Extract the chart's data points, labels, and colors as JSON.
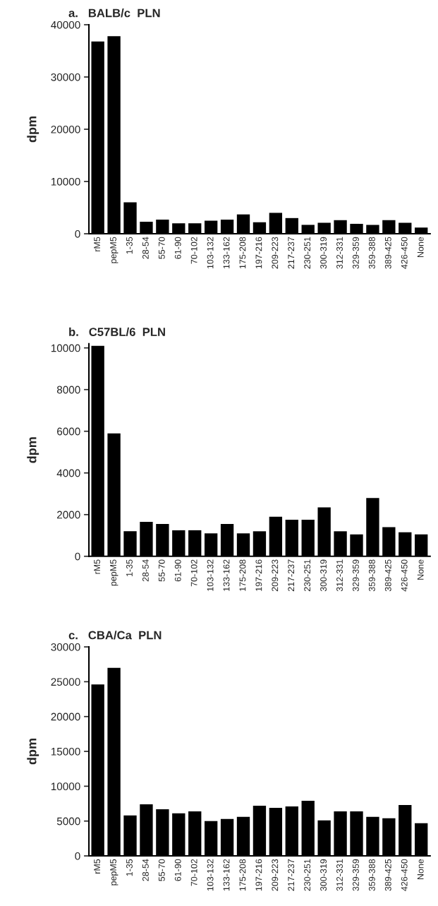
{
  "chart_data": [
    {
      "type": "bar",
      "title": "a.   BALB/c  PLN",
      "ylabel": "dpm",
      "categories": [
        "rM5",
        "pepM5",
        "1-35",
        "28-54",
        "55-70",
        "61-90",
        "70-102",
        "103-132",
        "133-162",
        "175-208",
        "197-216",
        "209-223",
        "217-237",
        "230-251",
        "300-319",
        "312-331",
        "329-359",
        "359-388",
        "389-425",
        "426-450",
        "None"
      ],
      "color": "#000000",
      "values": [
        36800,
        37800,
        6000,
        2300,
        2700,
        2000,
        2000,
        2500,
        2700,
        3700,
        2200,
        4000,
        3000,
        1700,
        2100,
        2600,
        1900,
        1700,
        2600,
        2100,
        1200
      ],
      "ylim": [
        0,
        40000
      ],
      "yticks": [
        0,
        10000,
        20000,
        30000,
        40000
      ],
      "grid": false
    },
    {
      "type": "bar",
      "title": "b.   C57BL/6  PLN",
      "ylabel": "dpm",
      "categories": [
        "rM5",
        "pepM5",
        "1-35",
        "28-54",
        "55-70",
        "61-90",
        "70-102",
        "103-132",
        "133-162",
        "175-208",
        "197-216",
        "209-223",
        "217-237",
        "230-251",
        "300-319",
        "312-331",
        "329-359",
        "359-388",
        "389-425",
        "426-450",
        "None"
      ],
      "color": "#000000",
      "values": [
        10100,
        5900,
        1200,
        1650,
        1550,
        1250,
        1250,
        1100,
        1550,
        1100,
        1200,
        1900,
        1750,
        1750,
        2350,
        1200,
        1050,
        2800,
        1400,
        1150,
        1050
      ],
      "ylim": [
        0,
        10200
      ],
      "yticks": [
        0,
        2000,
        4000,
        6000,
        8000,
        10000
      ],
      "grid": false
    },
    {
      "type": "bar",
      "title": "c.   CBA/Ca  PLN",
      "ylabel": "dpm",
      "categories": [
        "rM5",
        "pepM5",
        "1-35",
        "28-54",
        "55-70",
        "61-90",
        "70-102",
        "103-132",
        "133-162",
        "175-208",
        "197-216",
        "209-223",
        "217-237",
        "230-251",
        "300-319",
        "312-331",
        "329-359",
        "359-388",
        "389-425",
        "426-450",
        "None"
      ],
      "color": "#000000",
      "values": [
        24600,
        27000,
        5800,
        7400,
        6700,
        6100,
        6400,
        5000,
        5300,
        5600,
        7200,
        6900,
        7100,
        7900,
        5100,
        6400,
        6400,
        5600,
        5400,
        7300,
        4700
      ],
      "ylim": [
        0,
        30000
      ],
      "yticks": [
        0,
        5000,
        10000,
        15000,
        20000,
        25000,
        30000
      ],
      "grid": false
    }
  ]
}
